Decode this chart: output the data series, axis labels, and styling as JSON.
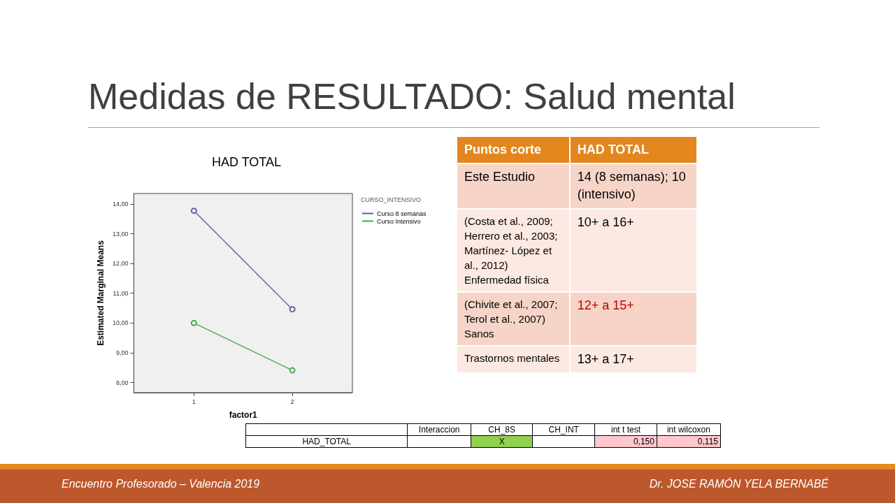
{
  "chart_data": [
    {
      "type": "other",
      "title": "Medidas de RESULTADO: Salud mental",
      "annotations": [
        "Encuentro Profesorado – Valencia 2019",
        "Dr. JOSE RAMÓN YELA BERNABÉ"
      ]
    },
    {
      "type": "line",
      "title": "HAD TOTAL",
      "xlabel": "factor1",
      "ylabel": "Estimated Marginal Means",
      "legend_title": "CURSO_INTENSIVO",
      "xlim": [
        0.39,
        2.61
      ],
      "xticks": [
        1,
        2
      ],
      "ylim": [
        7.66,
        14.35
      ],
      "yticks": [
        {
          "value": 8,
          "label": "8,00"
        },
        {
          "value": 9,
          "label": "9,00"
        },
        {
          "value": 10,
          "label": "10,00"
        },
        {
          "value": 11,
          "label": "11,00"
        },
        {
          "value": 12,
          "label": "12,00"
        },
        {
          "value": 13,
          "label": "13,00"
        },
        {
          "value": 14,
          "label": "14,00"
        }
      ],
      "x": [
        1,
        2
      ],
      "series": [
        {
          "name": "Curso 8 semanas",
          "color": "#5b5ba6",
          "values": [
            13.77,
            10.46
          ]
        },
        {
          "name": "Curso Intensivo",
          "color": "#45a84c",
          "values": [
            10.0,
            8.41
          ]
        }
      ],
      "marker": "circle",
      "grid": false,
      "legend": "right"
    },
    {
      "type": "other",
      "annotations": [
        "Puntos corte",
        "HAD TOTAL",
        "Este Estudio",
        "14 (8 semanas); 10 (intensivo)",
        "(Costa et al., 2009; Herrero et al., 2003; Martínez- López et al., 2012) Enfermedad física",
        "10+ a 16+",
        "(Chivite et al., 2007; Terol et al., 2007) Sanos",
        "12+ a 15+",
        "Trastornos mentales",
        "13+ a 17+"
      ],
      "colors": [
        "#ffffff",
        "#ffffff",
        "#000000",
        "#000000",
        "#000000",
        "#000000",
        "#000000",
        "#c00000",
        "#000000",
        "#000000"
      ]
    },
    {
      "type": "other",
      "annotations": [
        null,
        "Interaccion",
        "CH_8S",
        "CH_INT",
        "int t test",
        "int wilcoxon",
        "HAD_TOTAL",
        null,
        "X",
        null,
        "0,150",
        "0,115"
      ],
      "colors": [
        "#ffffff",
        "#ffffff",
        "#ffffff",
        "#ffffff",
        "#ffffff",
        "#ffffff",
        "#ffffff",
        "#ffffff",
        "#92d050",
        "#ffffff",
        "#ffc7ce",
        "#ffc7ce"
      ]
    }
  ]
}
